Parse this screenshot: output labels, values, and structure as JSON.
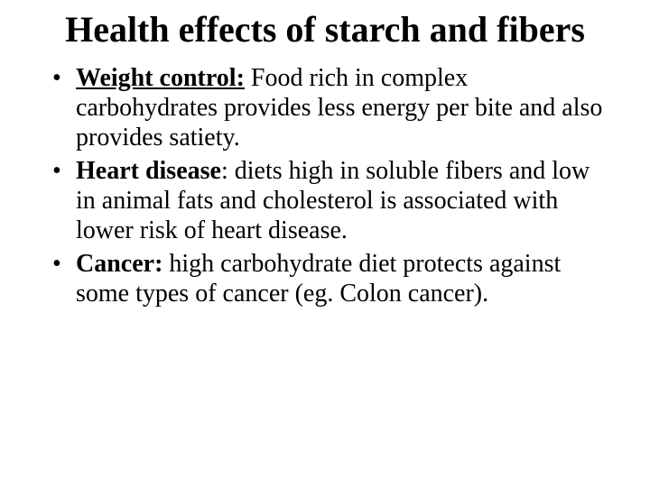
{
  "title": "Health effects of starch and fibers",
  "bullets": [
    {
      "label": "Weight control:",
      "label_style": "underline",
      "body": " Food rich in complex carbohydrates provides less energy per bite and also provides satiety."
    },
    {
      "label": "Heart disease",
      "label_style": "bold",
      "body": ": diets high in soluble fibers and low in animal fats and cholesterol is associated with lower risk of heart disease."
    },
    {
      "label": "Cancer:",
      "label_style": "bold",
      "body": " high carbohydrate diet protects against some types of cancer (eg. Colon cancer)."
    }
  ],
  "colors": {
    "background": "#ffffff",
    "text": "#000000"
  },
  "typography": {
    "family": "Times New Roman",
    "title_size_pt": 40,
    "title_weight": "bold",
    "body_size_pt": 28
  }
}
